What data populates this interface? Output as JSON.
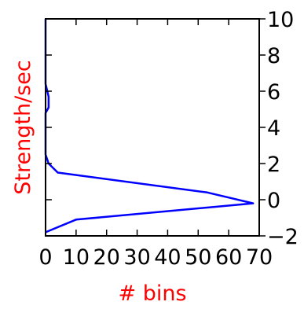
{
  "chart_data": {
    "type": "line",
    "orientation": "horizontal-histogram",
    "title": "",
    "xlabel": "# bins",
    "ylabel": "Strength/sec",
    "label_color": "#ff0000",
    "line_color": "#0000ff",
    "xlim": [
      0,
      70
    ],
    "ylim": [
      -2,
      10
    ],
    "x_ticks": [
      0,
      10,
      20,
      30,
      40,
      50,
      60,
      70
    ],
    "x_tick_labels": [
      "0",
      "10",
      "20",
      "30",
      "40",
      "50",
      "60",
      "70"
    ],
    "y_ticks": [
      -2,
      0,
      2,
      4,
      6,
      8,
      10
    ],
    "y_tick_labels": [
      "−2",
      "0",
      "2",
      "4",
      "6",
      "8",
      "10"
    ],
    "y_axis_side": "right",
    "grid": false,
    "series": [
      {
        "points": [
          {
            "x": 0,
            "y": -1.8
          },
          {
            "x": 10,
            "y": -1.1
          },
          {
            "x": 68,
            "y": -0.2
          },
          {
            "x": 53,
            "y": 0.4
          },
          {
            "x": 4,
            "y": 1.5
          },
          {
            "x": 1,
            "y": 2.0
          },
          {
            "x": 0,
            "y": 2.5
          },
          {
            "x": 0,
            "y": 4.8
          },
          {
            "x": 1,
            "y": 5.1
          },
          {
            "x": 1,
            "y": 5.7
          },
          {
            "x": 0,
            "y": 6.4
          },
          {
            "x": 0,
            "y": 10
          }
        ]
      }
    ]
  }
}
